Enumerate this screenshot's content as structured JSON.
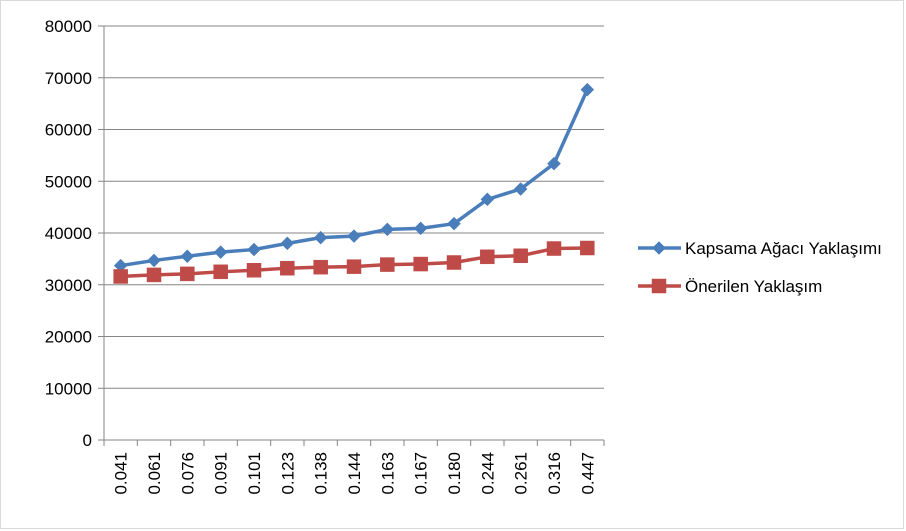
{
  "chart_data": {
    "type": "line",
    "title": "",
    "xlabel": "",
    "ylabel": "",
    "categories": [
      "0.041",
      "0.061",
      "0.076",
      "0.091",
      "0.101",
      "0.123",
      "0.138",
      "0.144",
      "0.163",
      "0.167",
      "0.180",
      "0.244",
      "0.261",
      "0.316",
      "0.447"
    ],
    "ylim": [
      0,
      80000
    ],
    "yticks": [
      "0",
      "10000",
      "20000",
      "30000",
      "40000",
      "50000",
      "60000",
      "70000",
      "80000"
    ],
    "grid": true,
    "legend_position": "right",
    "series": [
      {
        "name": "Kapsama Ağacı Yaklaşımı",
        "color": "#4a7ebb",
        "marker": "diamond",
        "values": [
          33700,
          34700,
          35500,
          36300,
          36800,
          38000,
          39100,
          39400,
          40700,
          40900,
          41800,
          46500,
          48500,
          53400,
          67700
        ]
      },
      {
        "name": "Önerilen Yaklaşım",
        "color": "#be4b48",
        "marker": "square",
        "values": [
          31600,
          31900,
          32100,
          32500,
          32800,
          33200,
          33400,
          33500,
          33900,
          34000,
          34300,
          35400,
          35600,
          37000,
          37100
        ]
      }
    ]
  }
}
